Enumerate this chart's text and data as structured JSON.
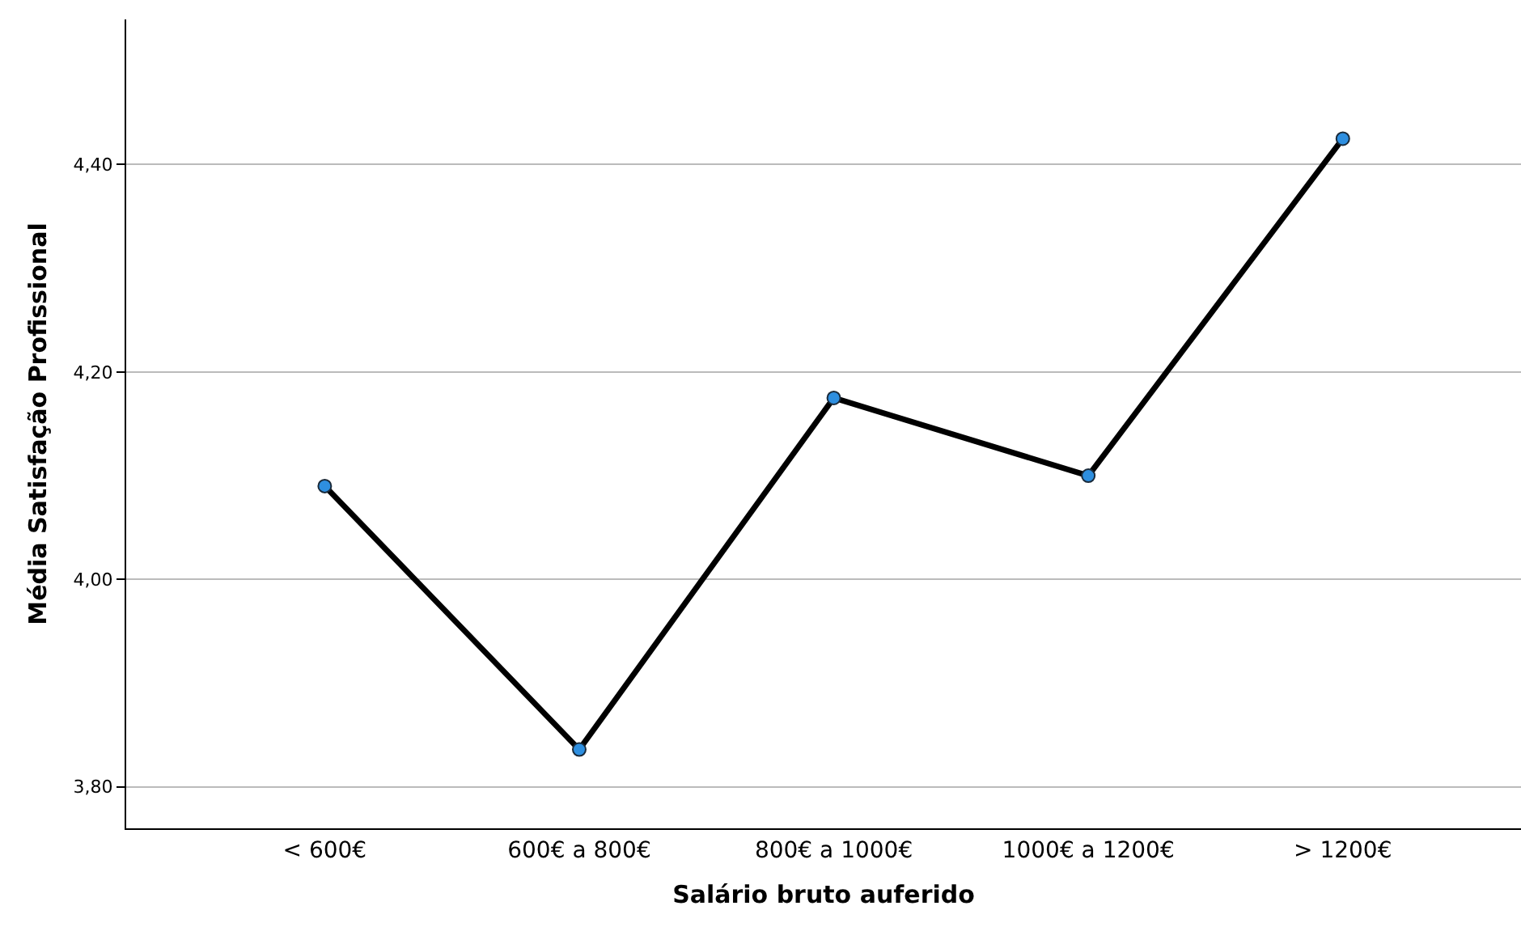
{
  "chart_data": {
    "type": "line",
    "xlabel": "Salário bruto auferido",
    "ylabel": "Média Satisfação Profissional",
    "categories": [
      "< 600€",
      "600€ a 800€",
      "800€ a 1000€",
      "1000€ a 1200€",
      "> 1200€"
    ],
    "series": [
      {
        "color": "#000000",
        "values": [
          4.09,
          3.836,
          4.175,
          4.1,
          4.425
        ]
      }
    ],
    "ylim": [
      3.76,
      4.54
    ],
    "yticks": [
      {
        "value": 3.8,
        "label": "3,80"
      },
      {
        "value": 4.0,
        "label": "4,00"
      },
      {
        "value": 4.2,
        "label": "4,20"
      },
      {
        "value": 4.4,
        "label": "4,40"
      }
    ],
    "grid": "y",
    "legend": false,
    "marker": "circle",
    "line_style": "solid"
  }
}
